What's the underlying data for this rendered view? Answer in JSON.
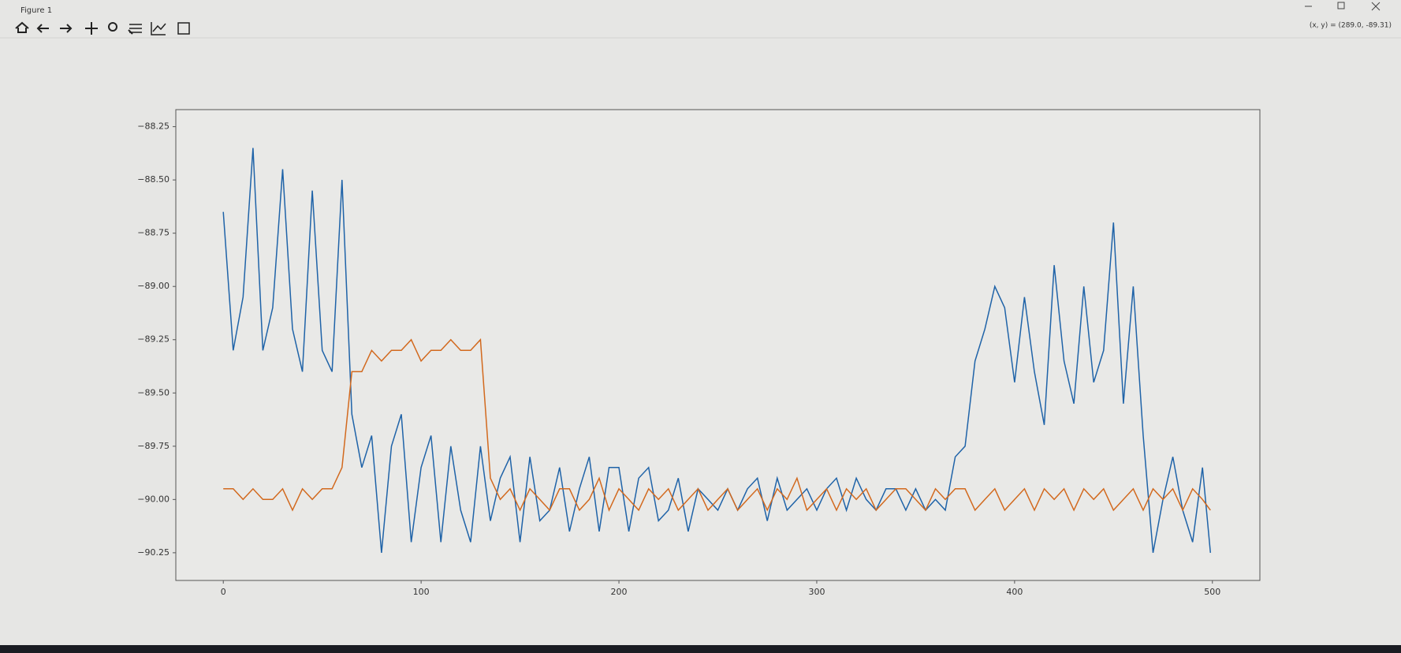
{
  "window": {
    "title": "Figure 1",
    "coordinates": "(x, y) = (289.0, -89.31)"
  },
  "chart_data": {
    "type": "line",
    "x": [
      0,
      5,
      10,
      15,
      20,
      25,
      30,
      35,
      40,
      45,
      50,
      55,
      60,
      65,
      70,
      75,
      80,
      85,
      90,
      95,
      100,
      105,
      110,
      115,
      120,
      125,
      130,
      135,
      140,
      145,
      150,
      155,
      160,
      165,
      170,
      175,
      180,
      185,
      190,
      195,
      200,
      205,
      210,
      215,
      220,
      225,
      230,
      235,
      240,
      245,
      250,
      255,
      260,
      265,
      270,
      275,
      280,
      285,
      290,
      295,
      300,
      305,
      310,
      315,
      320,
      325,
      330,
      335,
      340,
      345,
      350,
      355,
      360,
      365,
      370,
      375,
      380,
      385,
      390,
      395,
      400,
      405,
      410,
      415,
      420,
      425,
      430,
      435,
      440,
      445,
      450,
      455,
      460,
      465,
      470,
      475,
      480,
      485,
      490,
      495,
      499
    ],
    "series": [
      {
        "color": "#1f63a8",
        "values": [
          -88.65,
          -89.3,
          -89.05,
          -88.35,
          -89.3,
          -89.1,
          -88.45,
          -89.2,
          -89.4,
          -88.55,
          -89.3,
          -89.4,
          -88.5,
          -89.6,
          -89.85,
          -89.7,
          -90.25,
          -89.75,
          -89.6,
          -90.2,
          -89.85,
          -89.7,
          -90.2,
          -89.75,
          -90.05,
          -90.2,
          -89.75,
          -90.1,
          -89.9,
          -89.8,
          -90.2,
          -89.8,
          -90.1,
          -90.05,
          -89.85,
          -90.15,
          -89.95,
          -89.8,
          -90.15,
          -89.85,
          -89.85,
          -90.15,
          -89.9,
          -89.85,
          -90.1,
          -90.05,
          -89.9,
          -90.15,
          -89.95,
          -90.0,
          -90.05,
          -89.95,
          -90.05,
          -89.95,
          -89.9,
          -90.1,
          -89.9,
          -90.05,
          -90.0,
          -89.95,
          -90.05,
          -89.95,
          -89.9,
          -90.05,
          -89.9,
          -90.0,
          -90.05,
          -89.95,
          -89.95,
          -90.05,
          -89.95,
          -90.05,
          -90.0,
          -90.05,
          -89.8,
          -89.75,
          -89.35,
          -89.2,
          -89.0,
          -89.1,
          -89.45,
          -89.05,
          -89.4,
          -89.65,
          -88.9,
          -89.35,
          -89.55,
          -89.0,
          -89.45,
          -89.3,
          -88.7,
          -89.55,
          -89.0,
          -89.7,
          -90.25,
          -90.0,
          -89.8,
          -90.05,
          -90.2,
          -89.85,
          -90.25
        ]
      },
      {
        "color": "#d2691e",
        "values": [
          -89.95,
          -89.95,
          -90.0,
          -89.95,
          -90.0,
          -90.0,
          -89.95,
          -90.05,
          -89.95,
          -90.0,
          -89.95,
          -89.95,
          -89.85,
          -89.4,
          -89.4,
          -89.3,
          -89.35,
          -89.3,
          -89.3,
          -89.25,
          -89.35,
          -89.3,
          -89.3,
          -89.25,
          -89.3,
          -89.3,
          -89.25,
          -89.9,
          -90.0,
          -89.95,
          -90.05,
          -89.95,
          -90.0,
          -90.05,
          -89.95,
          -89.95,
          -90.05,
          -90.0,
          -89.9,
          -90.05,
          -89.95,
          -90.0,
          -90.05,
          -89.95,
          -90.0,
          -89.95,
          -90.05,
          -90.0,
          -89.95,
          -90.05,
          -90.0,
          -89.95,
          -90.05,
          -90.0,
          -89.95,
          -90.05,
          -89.95,
          -90.0,
          -89.9,
          -90.05,
          -90.0,
          -89.95,
          -90.05,
          -89.95,
          -90.0,
          -89.95,
          -90.05,
          -90.0,
          -89.95,
          -89.95,
          -90.0,
          -90.05,
          -89.95,
          -90.0,
          -89.95,
          -89.95,
          -90.05,
          -90.0,
          -89.95,
          -90.05,
          -90.0,
          -89.95,
          -90.05,
          -89.95,
          -90.0,
          -89.95,
          -90.05,
          -89.95,
          -90.0,
          -89.95,
          -90.05,
          -90.0,
          -89.95,
          -90.05,
          -89.95,
          -90.0,
          -89.95,
          -90.05,
          -89.95,
          -90.0,
          -90.05
        ]
      }
    ],
    "xlim": [
      -24,
      524
    ],
    "ylim": [
      -90.38,
      -88.17
    ],
    "xticks": [
      0,
      100,
      200,
      300,
      400,
      500
    ],
    "yticks": [
      {
        "value": -88.25,
        "label": "−88.25"
      },
      {
        "value": -88.5,
        "label": "−88.50"
      },
      {
        "value": -88.75,
        "label": "−88.75"
      },
      {
        "value": -89,
        "label": "−89.00"
      },
      {
        "value": -89.25,
        "label": "−89.25"
      },
      {
        "value": -89.5,
        "label": "−89.50"
      },
      {
        "value": -89.75,
        "label": "−89.75"
      },
      {
        "value": -90,
        "label": "−90.00"
      },
      {
        "value": -90.25,
        "label": "−90.25"
      }
    ]
  }
}
